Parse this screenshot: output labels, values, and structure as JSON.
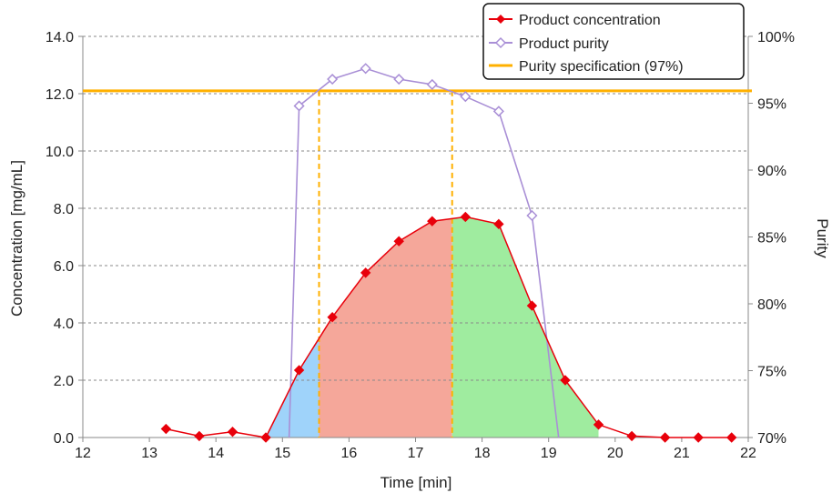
{
  "colors": {
    "concentration": "#e8000b",
    "purity": "#a98fd6",
    "specification": "#ffb000",
    "region_before": "#9fd3fa",
    "region_middle": "#f5a79a",
    "region_after": "#9fec9f"
  },
  "chart_data": {
    "type": "line",
    "xlabel": "Time [min]",
    "ylabel": "Concentration [mg/mL]",
    "y2label": "Purity",
    "xlim": [
      12,
      22
    ],
    "ylim": [
      0,
      14
    ],
    "y2lim": [
      70,
      100
    ],
    "x_ticks": [
      "12",
      "13",
      "14",
      "15",
      "16",
      "17",
      "18",
      "19",
      "20",
      "21",
      "22"
    ],
    "y_ticks": [
      "0.0",
      "2.0",
      "4.0",
      "6.0",
      "8.0",
      "10.0",
      "12.0",
      "14.0"
    ],
    "y2_ticks": [
      "70%",
      "75%",
      "80%",
      "85%",
      "90%",
      "95%",
      "100%"
    ],
    "grid": "horizontal dashed",
    "legend_position": "top-right",
    "series": [
      {
        "name": "Product concentration",
        "axis": "left",
        "marker": "filled diamond",
        "x": [
          13.25,
          13.75,
          14.25,
          14.75,
          15.25,
          15.75,
          16.25,
          16.75,
          17.25,
          17.75,
          18.25,
          18.75,
          19.25,
          19.75,
          20.25,
          20.75,
          21.25,
          21.75
        ],
        "y": [
          0.3,
          0.05,
          0.2,
          0.0,
          2.35,
          4.2,
          5.75,
          6.85,
          7.55,
          7.7,
          7.45,
          4.6,
          2.0,
          0.45,
          0.05,
          0.0,
          0.0,
          0.0
        ]
      },
      {
        "name": "Product purity",
        "axis": "right",
        "marker": "open diamond",
        "x": [
          15.25,
          15.75,
          16.25,
          16.75,
          17.25,
          17.75,
          18.25,
          18.75
        ],
        "y": [
          94.8,
          96.8,
          97.6,
          96.8,
          96.4,
          95.5,
          94.4,
          86.6
        ],
        "line_start": [
          15.1,
          70
        ],
        "line_end": [
          19.15,
          70
        ]
      },
      {
        "name": "Purity specification (97%)",
        "axis": "left",
        "y": 12.1
      }
    ],
    "cut_points": [
      15.55,
      17.55
    ],
    "shaded_regions": [
      "before",
      "middle",
      "after"
    ]
  }
}
